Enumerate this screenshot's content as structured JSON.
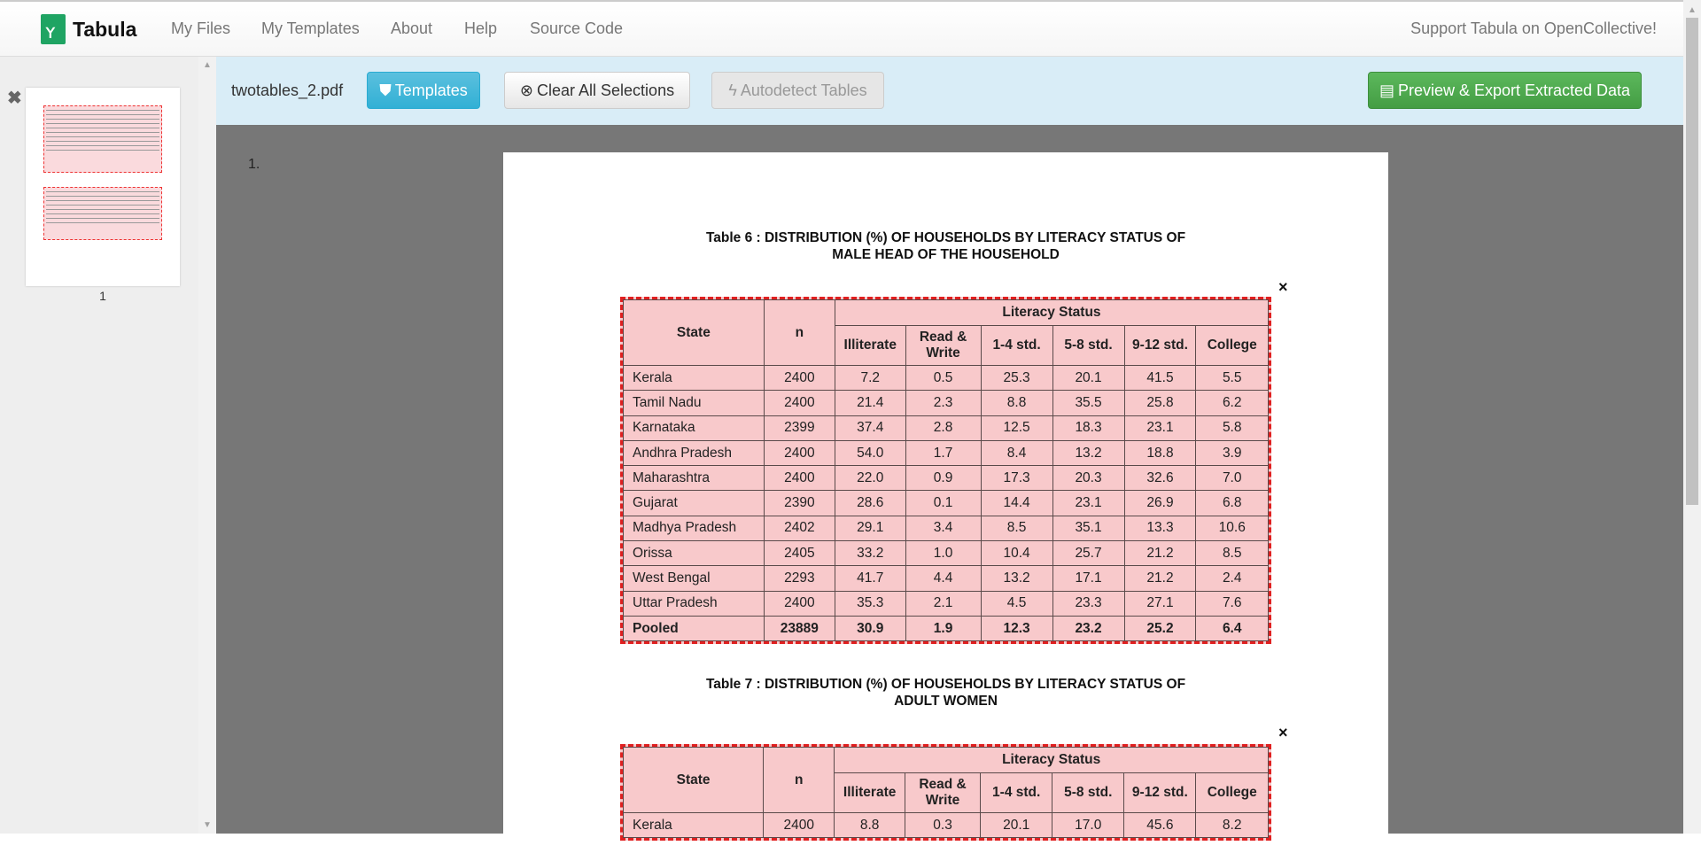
{
  "nav": {
    "brand": "Tabula",
    "links": [
      "My Files",
      "My Templates",
      "About",
      "Help",
      "Source Code"
    ],
    "support": "Support Tabula on OpenCollective!"
  },
  "sidebar": {
    "thumb_label": "1"
  },
  "toolbar": {
    "filename": "twotables_2.pdf",
    "templates": "Templates",
    "clear": "Clear All Selections",
    "autodetect": "Autodetect Tables",
    "export": "Preview & Export Extracted Data"
  },
  "page": {
    "number": "1.",
    "table6": {
      "title1": "Table 6 : DISTRIBUTION (%) OF HOUSEHOLDS BY LITERACY STATUS OF",
      "title2": "MALE HEAD OF THE HOUSEHOLD"
    },
    "table7": {
      "title1": "Table 7 : DISTRIBUTION (%) OF HOUSEHOLDS BY LITERACY STATUS OF",
      "title2": "ADULT WOMEN"
    },
    "close": "×",
    "headers": {
      "state": "State",
      "n": "n",
      "group": "Literacy Status",
      "cols": [
        "Illiterate",
        "Read & Write",
        "1-4 std.",
        "5-8 std.",
        "9-12 std.",
        "College"
      ]
    },
    "rows6": [
      [
        "Kerala",
        "2400",
        "7.2",
        "0.5",
        "25.3",
        "20.1",
        "41.5",
        "5.5"
      ],
      [
        "Tamil Nadu",
        "2400",
        "21.4",
        "2.3",
        "8.8",
        "35.5",
        "25.8",
        "6.2"
      ],
      [
        "Karnataka",
        "2399",
        "37.4",
        "2.8",
        "12.5",
        "18.3",
        "23.1",
        "5.8"
      ],
      [
        "Andhra Pradesh",
        "2400",
        "54.0",
        "1.7",
        "8.4",
        "13.2",
        "18.8",
        "3.9"
      ],
      [
        "Maharashtra",
        "2400",
        "22.0",
        "0.9",
        "17.3",
        "20.3",
        "32.6",
        "7.0"
      ],
      [
        "Gujarat",
        "2390",
        "28.6",
        "0.1",
        "14.4",
        "23.1",
        "26.9",
        "6.8"
      ],
      [
        "Madhya Pradesh",
        "2402",
        "29.1",
        "3.4",
        "8.5",
        "35.1",
        "13.3",
        "10.6"
      ],
      [
        "Orissa",
        "2405",
        "33.2",
        "1.0",
        "10.4",
        "25.7",
        "21.2",
        "8.5"
      ],
      [
        "West Bengal",
        "2293",
        "41.7",
        "4.4",
        "13.2",
        "17.1",
        "21.2",
        "2.4"
      ],
      [
        "Uttar Pradesh",
        "2400",
        "35.3",
        "2.1",
        "4.5",
        "23.3",
        "27.1",
        "7.6"
      ],
      [
        "Pooled",
        "23889",
        "30.9",
        "1.9",
        "12.3",
        "23.2",
        "25.2",
        "6.4"
      ]
    ],
    "rows7": [
      [
        "Kerala",
        "2400",
        "8.8",
        "0.3",
        "20.1",
        "17.0",
        "45.6",
        "8.2"
      ]
    ]
  },
  "colors": {
    "toolbar": "#d9edf7",
    "templates": "#5bc0de",
    "export": "#5cb85c",
    "selection": "#e02020"
  }
}
